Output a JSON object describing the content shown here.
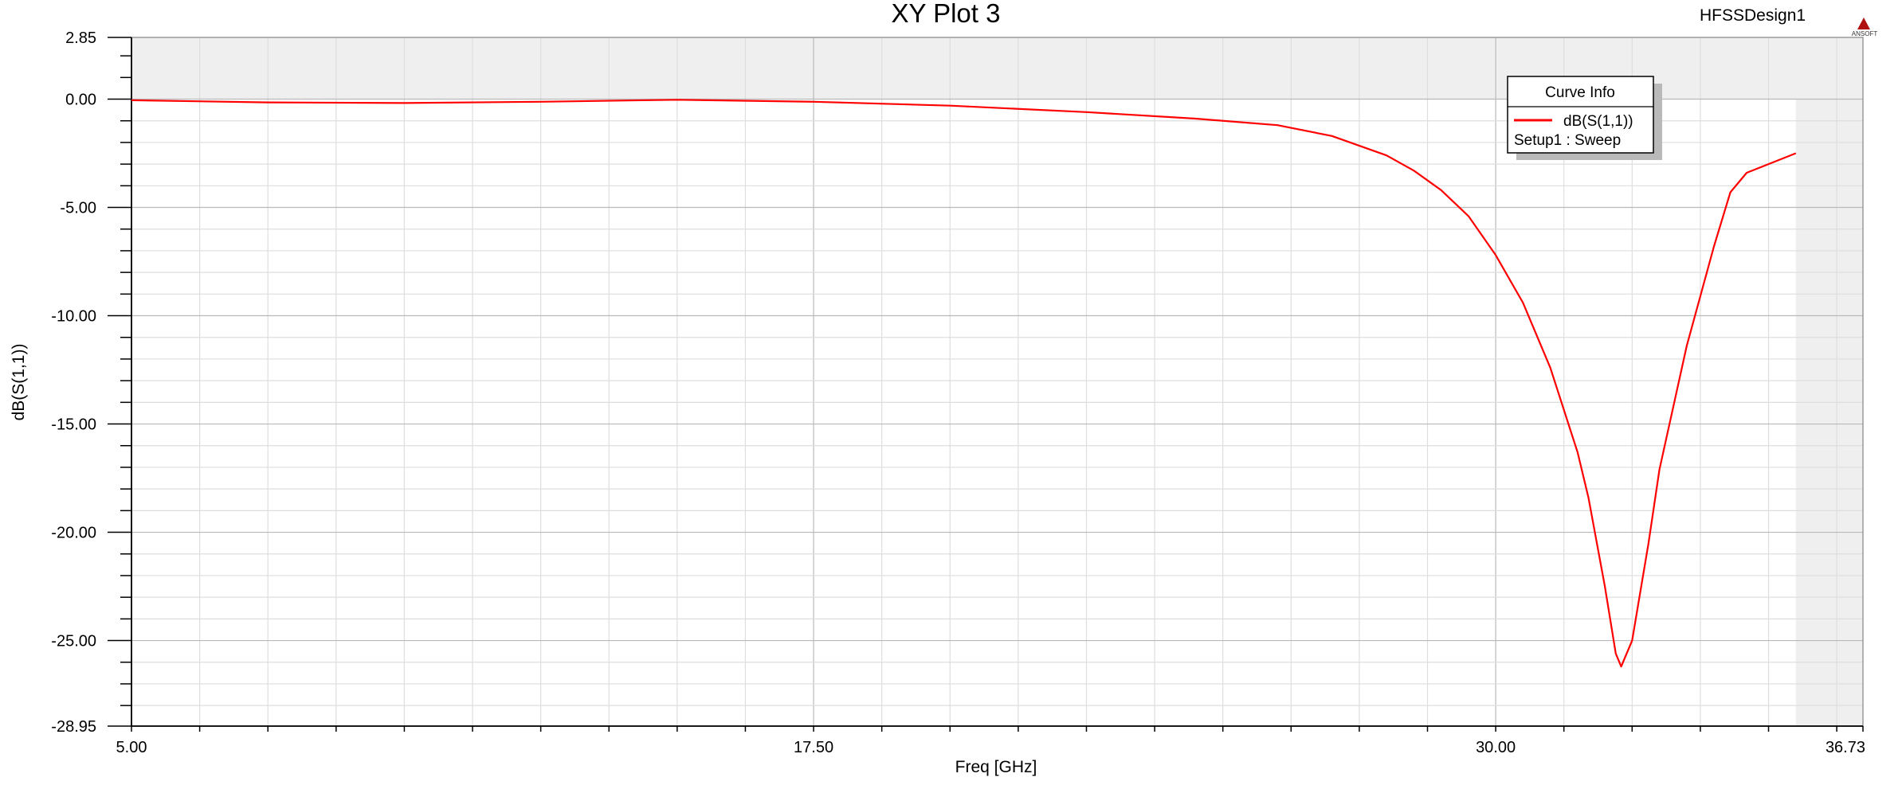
{
  "chart_data": {
    "type": "line",
    "title": "XY Plot 3",
    "design_name": "HFSSDesign1",
    "logo_text": "ANSOFT",
    "xlabel": "Freq [GHz]",
    "ylabel": "dB(S(1,1))",
    "xlim": [
      5.0,
      36.73
    ],
    "ylim": [
      -28.95,
      2.85
    ],
    "x_tick_labels": [
      "5.00",
      "17.50",
      "30.00",
      "36.73"
    ],
    "y_tick_labels": [
      "2.85",
      "0.00",
      "-5.00",
      "-10.00",
      "-15.00",
      "-20.00",
      "-25.00",
      "-28.95"
    ],
    "grid": true,
    "legend_position": "top-right",
    "legend": {
      "title": "Curve Info",
      "entries": [
        {
          "name": "dB(S(1,1))",
          "sub": "Setup1 : Sweep",
          "color": "#ff0000"
        }
      ]
    },
    "series": [
      {
        "name": "dB(S(1,1))",
        "color": "#ff0000",
        "points": [
          [
            5.0,
            -0.05
          ],
          [
            7.5,
            -0.15
          ],
          [
            10.0,
            -0.18
          ],
          [
            12.5,
            -0.12
          ],
          [
            15.0,
            -0.03
          ],
          [
            17.5,
            -0.12
          ],
          [
            20.0,
            -0.3
          ],
          [
            22.5,
            -0.6
          ],
          [
            24.5,
            -0.9
          ],
          [
            26.0,
            -1.2
          ],
          [
            27.0,
            -1.7
          ],
          [
            28.0,
            -2.6
          ],
          [
            28.5,
            -3.3
          ],
          [
            29.0,
            -4.2
          ],
          [
            29.5,
            -5.4
          ],
          [
            30.0,
            -7.2
          ],
          [
            30.5,
            -9.4
          ],
          [
            31.0,
            -12.4
          ],
          [
            31.5,
            -16.3
          ],
          [
            31.7,
            -18.4
          ],
          [
            32.0,
            -22.5
          ],
          [
            32.2,
            -25.6
          ],
          [
            32.3,
            -26.2
          ],
          [
            32.5,
            -25.0
          ],
          [
            32.8,
            -20.5
          ],
          [
            33.0,
            -17.1
          ],
          [
            33.5,
            -11.4
          ],
          [
            34.0,
            -6.8
          ],
          [
            34.3,
            -4.3
          ],
          [
            34.6,
            -3.4
          ],
          [
            35.0,
            -3.0
          ],
          [
            35.5,
            -2.5
          ]
        ]
      }
    ]
  }
}
